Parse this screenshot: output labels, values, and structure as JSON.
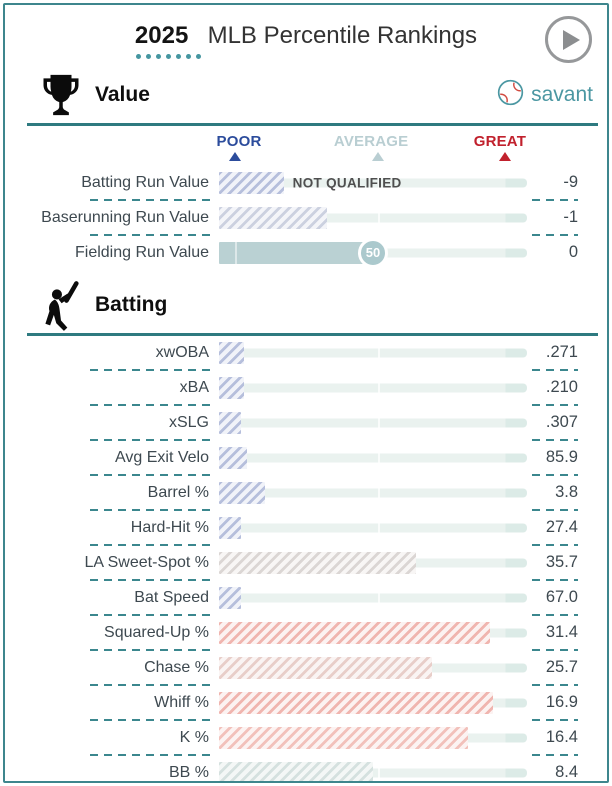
{
  "header": {
    "year": "2025",
    "title": "MLB Percentile Rankings"
  },
  "brand": {
    "name": "savant"
  },
  "scale": {
    "poor": "POOR",
    "average": "AVERAGE",
    "great": "GREAT"
  },
  "colors": {
    "accent_teal": "#2e7a80",
    "dash_teal": "#3b878e",
    "poor_blue": "#2c4c9c",
    "average_gray": "#b9ced2",
    "great_red": "#c1212d",
    "track": "#eaf2ef",
    "solid_bar_teal": "#bad1d3",
    "savant_text_teal": "#4b97a2"
  },
  "chart_data": {
    "type": "bar",
    "title": "2025 MLB Percentile Rankings",
    "x_axis": {
      "min": 0,
      "max": 100,
      "markers": {
        "POOR": 5,
        "AVERAGE": 50,
        "GREAT": 93
      }
    },
    "groups": [
      {
        "name": "Value",
        "icon": "trophy-icon",
        "rows": [
          {
            "label": "Batting Run Value",
            "value": "-9",
            "percentile": 21,
            "style": "hatch-blue",
            "note": "NOT QUALIFIED"
          },
          {
            "label": "Baserunning Run Value",
            "value": "-1",
            "percentile": 35,
            "style": "hatch-bluegray"
          },
          {
            "label": "Fielding Run Value",
            "value": "0",
            "percentile": 50,
            "style": "solid",
            "bubble": "50"
          }
        ]
      },
      {
        "name": "Batting",
        "icon": "batter-icon",
        "rows": [
          {
            "label": "xwOBA",
            "value": ".271",
            "percentile": 8,
            "style": "hatch-blue"
          },
          {
            "label": "xBA",
            "value": ".210",
            "percentile": 8,
            "style": "hatch-blue"
          },
          {
            "label": "xSLG",
            "value": ".307",
            "percentile": 7,
            "style": "hatch-blue"
          },
          {
            "label": "Avg Exit Velo",
            "value": "85.9",
            "percentile": 9,
            "style": "hatch-blue"
          },
          {
            "label": "Barrel %",
            "value": "3.8",
            "percentile": 15,
            "style": "hatch-blue"
          },
          {
            "label": "Hard-Hit %",
            "value": "27.4",
            "percentile": 7,
            "style": "hatch-blue"
          },
          {
            "label": "LA Sweet-Spot %",
            "value": "35.7",
            "percentile": 64,
            "style": "hatch-gray"
          },
          {
            "label": "Bat Speed",
            "value": "67.0",
            "percentile": 7,
            "style": "hatch-blue"
          },
          {
            "label": "Squared-Up %",
            "value": "31.4",
            "percentile": 88,
            "style": "hatch-red"
          },
          {
            "label": "Chase %",
            "value": "25.7",
            "percentile": 69,
            "style": "hatch-pink"
          },
          {
            "label": "Whiff %",
            "value": "16.9",
            "percentile": 89,
            "style": "hatch-red"
          },
          {
            "label": "K %",
            "value": "16.4",
            "percentile": 81,
            "style": "hatch-redlight"
          },
          {
            "label": "BB %",
            "value": "8.4",
            "percentile": 50,
            "style": "hatch-teal"
          }
        ]
      }
    ]
  }
}
